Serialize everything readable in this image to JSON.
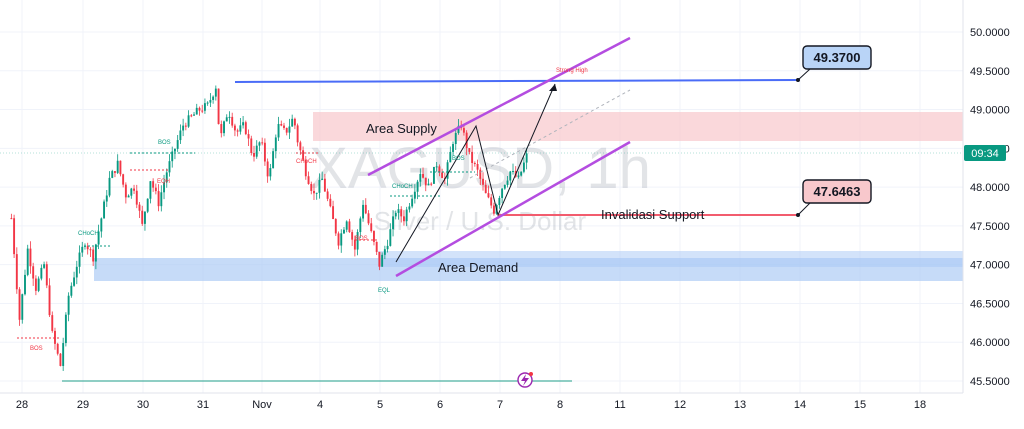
{
  "chart_data": {
    "type": "candlestick",
    "title": "XAGUSD, 1h",
    "subtitle": "Silver / U.S. Dollar",
    "x_ticks": [
      "28",
      "29",
      "30",
      "31",
      "Nov",
      "4",
      "5",
      "6",
      "7",
      "8",
      "11",
      "12",
      "13",
      "14",
      "15",
      "18"
    ],
    "y_ticks": [
      "50.0000",
      "49.5000",
      "49.0000",
      "48.5000",
      "48.0000",
      "47.5000",
      "47.0000",
      "46.5000",
      "46.0000",
      "45.5000"
    ],
    "ylim": [
      45.4,
      50.1
    ],
    "current_price": "48.4",
    "timer": "09:34",
    "path_points": [
      [
        0,
        47.6
      ],
      [
        2,
        46.3
      ],
      [
        4,
        47.2
      ],
      [
        6,
        46.7
      ],
      [
        8,
        47.0
      ],
      [
        10,
        46.1
      ],
      [
        12,
        45.7
      ],
      [
        14,
        46.6
      ],
      [
        16,
        47.0
      ],
      [
        18,
        47.3
      ],
      [
        20,
        47.1
      ],
      [
        22,
        47.6
      ],
      [
        24,
        48.1
      ],
      [
        26,
        48.3
      ],
      [
        28,
        47.9
      ],
      [
        30,
        48.0
      ],
      [
        32,
        47.5
      ],
      [
        34,
        48.1
      ],
      [
        36,
        47.8
      ],
      [
        38,
        48.2
      ],
      [
        40,
        48.5
      ],
      [
        42,
        48.8
      ],
      [
        44,
        48.9
      ],
      [
        46,
        49.0
      ],
      [
        48,
        49.05
      ],
      [
        50,
        49.3
      ],
      [
        51,
        48.6
      ],
      [
        53,
        49.0
      ],
      [
        55,
        48.7
      ],
      [
        57,
        48.8
      ],
      [
        59,
        48.4
      ],
      [
        61,
        48.6
      ],
      [
        63,
        48.1
      ],
      [
        65,
        48.8
      ],
      [
        67,
        48.7
      ],
      [
        69,
        48.9
      ],
      [
        70,
        48.6
      ],
      [
        72,
        48.2
      ],
      [
        74,
        47.9
      ],
      [
        76,
        48.1
      ],
      [
        78,
        47.7
      ],
      [
        80,
        47.3
      ],
      [
        82,
        47.6
      ],
      [
        84,
        47.2
      ],
      [
        86,
        47.8
      ],
      [
        88,
        47.4
      ],
      [
        90,
        47.0
      ],
      [
        92,
        47.3
      ],
      [
        94,
        47.7
      ],
      [
        96,
        47.6
      ],
      [
        98,
        47.9
      ],
      [
        100,
        48.2
      ],
      [
        102,
        48.0
      ],
      [
        104,
        48.3
      ],
      [
        106,
        48.1
      ],
      [
        108,
        48.6
      ],
      [
        110,
        48.8
      ],
      [
        112,
        48.4
      ],
      [
        114,
        48.2
      ],
      [
        116,
        47.9
      ],
      [
        118,
        47.7
      ],
      [
        120,
        48.0
      ],
      [
        122,
        48.2
      ],
      [
        124,
        48.1
      ],
      [
        126,
        48.4
      ]
    ],
    "annotations": {
      "supply_label": "Area Supply",
      "demand_label": "Area Demand",
      "invalidation_label": "Invalidasi Support",
      "strong_high_label": "Strong High",
      "resistance_value": "49.3700",
      "support_value": "47.6463",
      "bos": "BOS",
      "choch": "CHoCH",
      "eqh": "EQH",
      "eql": "EQL"
    },
    "colors": {
      "up": "#089981",
      "down": "#f23645",
      "channel": "#b44de0",
      "resistance_line": "#4a6cf7",
      "support_line": "#f25c6e",
      "supply_zone": "#f8c8cc",
      "demand_zone": "#a8c8f5"
    }
  }
}
